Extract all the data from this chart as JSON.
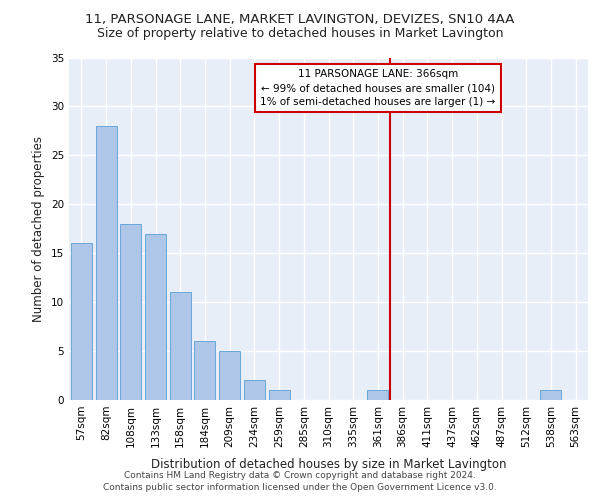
{
  "title1": "11, PARSONAGE LANE, MARKET LAVINGTON, DEVIZES, SN10 4AA",
  "title2": "Size of property relative to detached houses in Market Lavington",
  "xlabel": "Distribution of detached houses by size in Market Lavington",
  "ylabel": "Number of detached properties",
  "bar_labels": [
    "57sqm",
    "82sqm",
    "108sqm",
    "133sqm",
    "158sqm",
    "184sqm",
    "209sqm",
    "234sqm",
    "259sqm",
    "285sqm",
    "310sqm",
    "335sqm",
    "361sqm",
    "386sqm",
    "411sqm",
    "437sqm",
    "462sqm",
    "487sqm",
    "512sqm",
    "538sqm",
    "563sqm"
  ],
  "bar_values": [
    16,
    28,
    18,
    17,
    11,
    6,
    5,
    2,
    1,
    0,
    0,
    0,
    1,
    0,
    0,
    0,
    0,
    0,
    0,
    1,
    0
  ],
  "bar_color": "#aec6e8",
  "bar_edge_color": "#5a9fd4",
  "background_color": "#e8eef8",
  "grid_color": "#ffffff",
  "vline_x": 12.5,
  "vline_color": "#cc0000",
  "annotation_text": "11 PARSONAGE LANE: 366sqm\n← 99% of detached houses are smaller (104)\n1% of semi-detached houses are larger (1) →",
  "annotation_box_color": "#ffffff",
  "annotation_box_edge": "#cc0000",
  "ylim": [
    0,
    35
  ],
  "yticks": [
    0,
    5,
    10,
    15,
    20,
    25,
    30,
    35
  ],
  "footer": "Contains HM Land Registry data © Crown copyright and database right 2024.\nContains public sector information licensed under the Open Government Licence v3.0.",
  "title1_fontsize": 9.5,
  "title2_fontsize": 9,
  "xlabel_fontsize": 8.5,
  "ylabel_fontsize": 8.5,
  "tick_fontsize": 7.5,
  "annotation_fontsize": 7.5,
  "footer_fontsize": 6.5
}
